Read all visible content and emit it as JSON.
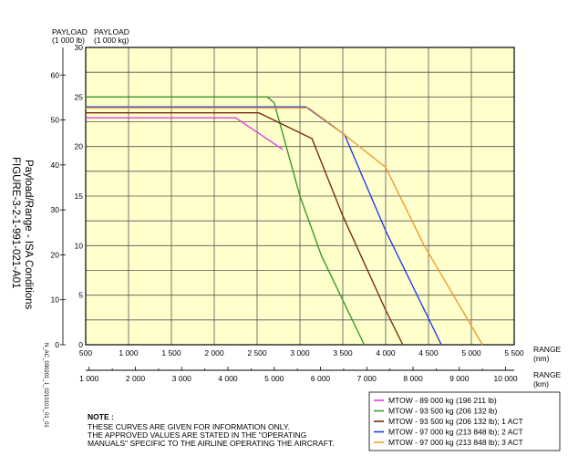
{
  "side_caption": {
    "title": "Payload/Range - ISA Conditions",
    "figure": "FIGURE-3-2-1-991-021-A01",
    "code": "N_AC_030201_1_0210101_01_01"
  },
  "axes": {
    "payload_lb_label": [
      "PAYLOAD",
      "(1 000 lb)"
    ],
    "payload_kg_label": [
      "PAYLOAD",
      "(1 000 kg)"
    ],
    "range_nm_label": [
      "RANGE",
      "(nm)"
    ],
    "range_km_label": [
      "RANGE",
      "(km)"
    ]
  },
  "note": {
    "heading": "NOTE :",
    "lines": [
      "THESE CURVES ARE GIVEN FOR INFORMATION ONLY.",
      "THE APPROVED VALUES ARE STATED IN THE \"OPERATING",
      "MANUALS\" SPECIFIC TO THE AIRLINE OPERATING THE AIRCRAFT."
    ]
  },
  "chart_data": {
    "type": "line",
    "xlabel": "RANGE (nm)",
    "ylabel": "PAYLOAD (1 000 kg)",
    "xlim": [
      500,
      5500
    ],
    "ylim": [
      0,
      30
    ],
    "x_ticks": [
      "500",
      "1 000",
      "1 500",
      "2 000",
      "2 500",
      "3 000",
      "3 500",
      "4 000",
      "4 500",
      "5 000",
      "5 500"
    ],
    "y_ticks_kg": [
      "0",
      "5",
      "10",
      "15",
      "20",
      "25",
      "30"
    ],
    "y_ticks_lb": [
      "0",
      "10",
      "20",
      "30",
      "40",
      "50",
      "60"
    ],
    "x2_ticks_km": [
      "1 000",
      "2 000",
      "3 000",
      "4 000",
      "5 000",
      "6 000",
      "7 000",
      "8 000",
      "9 000",
      "10 000"
    ],
    "grid": true,
    "legend_position": "bottom-right",
    "series": [
      {
        "name": "MTOW - 89 000 kg (196 211 lb)",
        "color": "#e040e0",
        "points": [
          [
            500,
            22.9
          ],
          [
            2250,
            22.9
          ],
          [
            2800,
            19.7
          ]
        ]
      },
      {
        "name": "MTOW - 93 500 kg (206 132 lb)",
        "color": "#3a9a2a",
        "points": [
          [
            500,
            25.0
          ],
          [
            2620,
            25.0
          ],
          [
            2700,
            24.4
          ],
          [
            3000,
            15.0
          ],
          [
            3250,
            9.0
          ],
          [
            3750,
            0
          ]
        ]
      },
      {
        "name": "MTOW - 93 500 kg (206 132 lb); 1 ACT",
        "color": "#7a2a10",
        "points": [
          [
            500,
            23.4
          ],
          [
            2520,
            23.4
          ],
          [
            3140,
            20.8
          ],
          [
            3500,
            13.0
          ],
          [
            4000,
            3.5
          ],
          [
            4200,
            0
          ]
        ]
      },
      {
        "name": "MTOW - 97 000 kg (213 848 lb); 2 ACT",
        "color": "#1f3cf0",
        "points": [
          [
            500,
            24.0
          ],
          [
            3070,
            24.0
          ],
          [
            3520,
            21.2
          ],
          [
            4000,
            11.5
          ],
          [
            4650,
            0
          ]
        ]
      },
      {
        "name": "MTOW - 97 000 kg (213 848 lb); 3 ACT",
        "color": "#f09a30",
        "points": [
          [
            500,
            23.9
          ],
          [
            3100,
            23.9
          ],
          [
            3400,
            22.0
          ],
          [
            4000,
            17.9
          ],
          [
            4450,
            10.0
          ],
          [
            5130,
            0
          ]
        ]
      }
    ]
  }
}
